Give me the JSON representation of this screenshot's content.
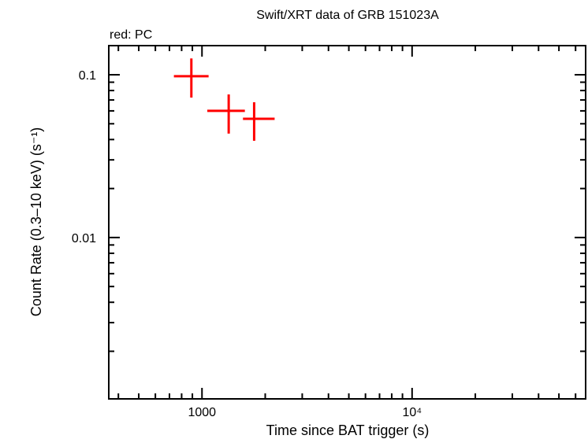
{
  "chart_data": {
    "type": "scatter",
    "title": "Swift/XRT data of GRB 151023A",
    "legend_note": "red: PC",
    "xlabel": "Time since BAT trigger (s)",
    "ylabel": "Count Rate (0.3–10 keV) (s⁻¹)",
    "xscale": "log",
    "yscale": "log",
    "xlim": [
      360,
      67000
    ],
    "ylim": [
      0.00102,
      0.151
    ],
    "x_ticks": [
      {
        "value": 1000,
        "label": "1000"
      },
      {
        "value": 10000,
        "label": "10⁴"
      }
    ],
    "y_ticks": [
      {
        "value": 0.1,
        "label": "0.1"
      },
      {
        "value": 0.01,
        "label": "0.01"
      }
    ],
    "grid": false,
    "series": [
      {
        "name": "PC",
        "color": "#ff0000",
        "points": [
          {
            "x": 890,
            "xlo": 735,
            "xhi": 1075,
            "y": 0.098,
            "ylo": 0.0724,
            "yhi": 0.126
          },
          {
            "x": 1340,
            "xlo": 1060,
            "xhi": 1600,
            "y": 0.06,
            "ylo": 0.0435,
            "yhi": 0.0757
          },
          {
            "x": 1771,
            "xlo": 1567,
            "xhi": 2217,
            "y": 0.0536,
            "ylo": 0.0393,
            "yhi": 0.0678
          }
        ]
      }
    ]
  }
}
